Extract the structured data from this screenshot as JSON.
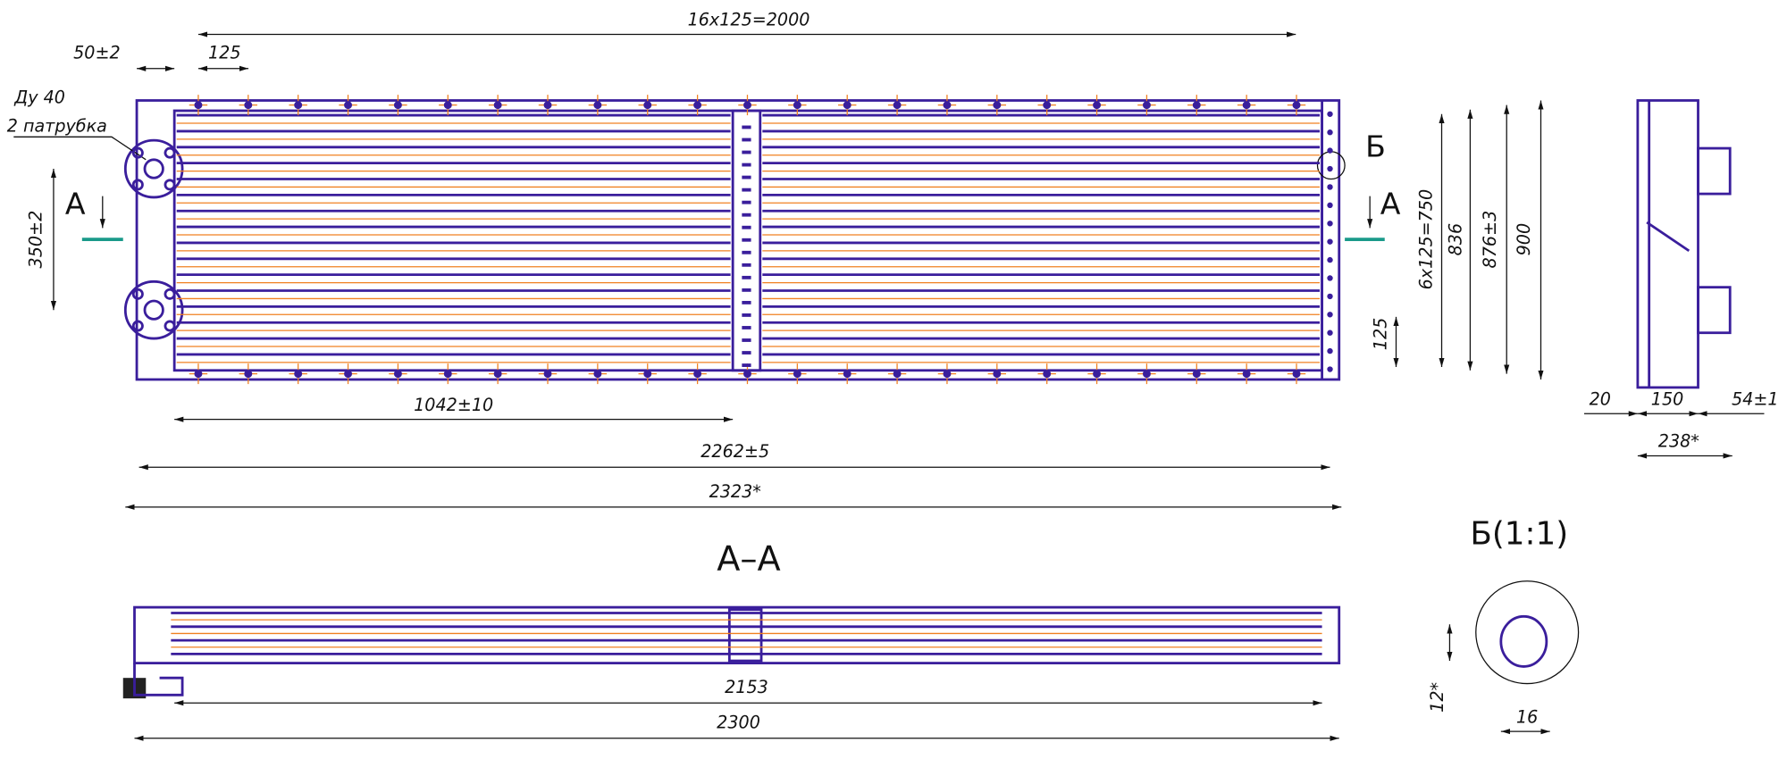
{
  "main_view": {
    "dims": {
      "top_pitch": "16x125=2000",
      "flange_offset": "50±2",
      "pitch": "125",
      "flange_spacing": "350±2",
      "half_length": "1042±10",
      "frame_length": "2262±5",
      "overall_length": "2323*",
      "rows_pitch": "6x125=750",
      "inner_height": "836",
      "frame_height": "876±3",
      "overall_height": "900",
      "bottom_pitch": "125"
    },
    "nozzle_note": [
      "Ду 40",
      "2 патрубка"
    ],
    "section_marks": [
      "А",
      "А"
    ],
    "detail_mark": "Б"
  },
  "side_view": {
    "dims": [
      "20",
      "150",
      "54±1",
      "238*"
    ]
  },
  "section_view": {
    "title": "А–А",
    "dims": [
      "2153",
      "2300"
    ]
  },
  "detail_view": {
    "title": "Б(1:1)",
    "dims": [
      "12*",
      "16"
    ]
  }
}
